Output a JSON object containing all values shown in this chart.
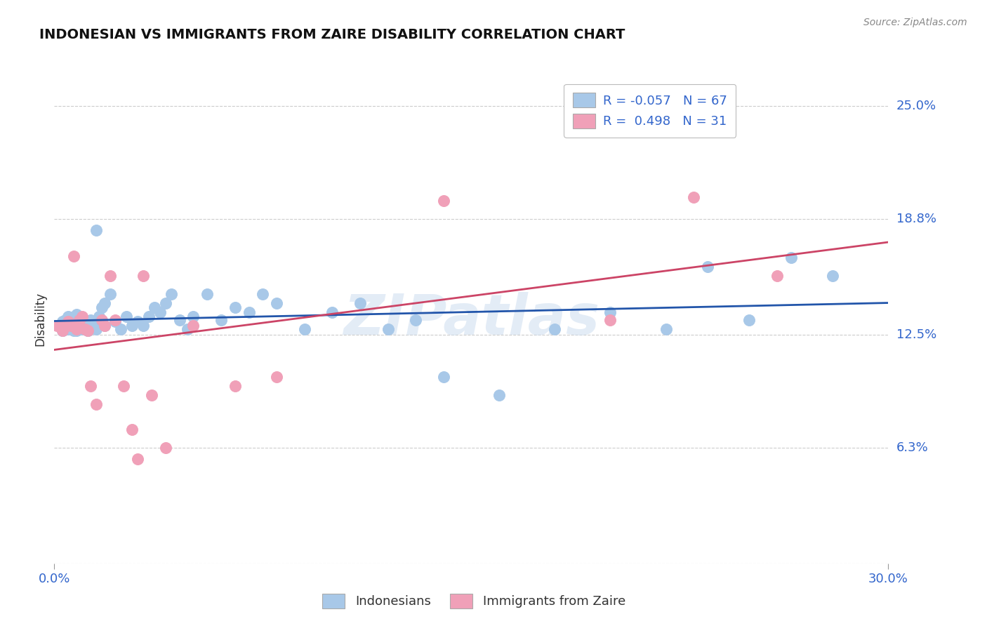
{
  "title": "INDONESIAN VS IMMIGRANTS FROM ZAIRE DISABILITY CORRELATION CHART",
  "source": "Source: ZipAtlas.com",
  "ylabel": "Disability",
  "xmin": 0.0,
  "xmax": 0.3,
  "ymin": 0.0,
  "ymax": 0.2667,
  "blue_R": "-0.057",
  "blue_N": "67",
  "pink_R": "0.498",
  "pink_N": "31",
  "blue_color": "#a8c8e8",
  "pink_color": "#f0a0b8",
  "line_blue": "#2255aa",
  "line_pink": "#cc4466",
  "background_color": "#ffffff",
  "grid_color": "#cccccc",
  "watermark": "ZIPatlas",
  "ytick_vals": [
    0.0,
    0.063,
    0.125,
    0.188,
    0.25
  ],
  "ytick_labels": [
    "",
    "6.3%",
    "12.5%",
    "18.8%",
    "25.0%"
  ],
  "blue_x": [
    0.002,
    0.003,
    0.003,
    0.004,
    0.004,
    0.005,
    0.005,
    0.006,
    0.006,
    0.007,
    0.007,
    0.008,
    0.008,
    0.009,
    0.009,
    0.01,
    0.01,
    0.011,
    0.012,
    0.013,
    0.014,
    0.015,
    0.016,
    0.017,
    0.018,
    0.02,
    0.022,
    0.024,
    0.026,
    0.028,
    0.03,
    0.032,
    0.034,
    0.036,
    0.038,
    0.04,
    0.042,
    0.045,
    0.048,
    0.05,
    0.055,
    0.06,
    0.065,
    0.07,
    0.075,
    0.08,
    0.09,
    0.1,
    0.11,
    0.12,
    0.13,
    0.14,
    0.16,
    0.18,
    0.2,
    0.22,
    0.235,
    0.25,
    0.265,
    0.28,
    0.003,
    0.005,
    0.007,
    0.009,
    0.012,
    0.015,
    0.018
  ],
  "blue_y": [
    0.13,
    0.132,
    0.127,
    0.128,
    0.133,
    0.135,
    0.128,
    0.13,
    0.132,
    0.128,
    0.133,
    0.136,
    0.127,
    0.13,
    0.132,
    0.133,
    0.128,
    0.13,
    0.127,
    0.133,
    0.13,
    0.128,
    0.135,
    0.14,
    0.142,
    0.147,
    0.132,
    0.128,
    0.135,
    0.13,
    0.132,
    0.13,
    0.135,
    0.14,
    0.137,
    0.142,
    0.147,
    0.133,
    0.128,
    0.135,
    0.147,
    0.133,
    0.14,
    0.137,
    0.147,
    0.142,
    0.128,
    0.137,
    0.142,
    0.128,
    0.133,
    0.102,
    0.092,
    0.128,
    0.137,
    0.128,
    0.162,
    0.133,
    0.167,
    0.157,
    0.127,
    0.13,
    0.127,
    0.13,
    0.127,
    0.182,
    0.13
  ],
  "pink_x": [
    0.001,
    0.002,
    0.003,
    0.004,
    0.005,
    0.006,
    0.007,
    0.008,
    0.009,
    0.01,
    0.011,
    0.012,
    0.013,
    0.015,
    0.017,
    0.018,
    0.02,
    0.022,
    0.025,
    0.028,
    0.03,
    0.032,
    0.035,
    0.04,
    0.05,
    0.065,
    0.08,
    0.14,
    0.2,
    0.23,
    0.26
  ],
  "pink_y": [
    0.13,
    0.13,
    0.127,
    0.13,
    0.132,
    0.13,
    0.168,
    0.128,
    0.133,
    0.135,
    0.128,
    0.127,
    0.097,
    0.087,
    0.133,
    0.13,
    0.157,
    0.133,
    0.097,
    0.073,
    0.057,
    0.157,
    0.092,
    0.063,
    0.13,
    0.097,
    0.102,
    0.198,
    0.133,
    0.2,
    0.157
  ]
}
